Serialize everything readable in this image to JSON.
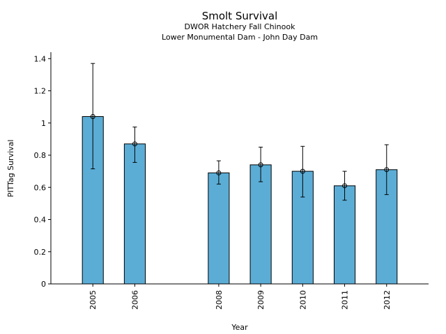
{
  "chart_data": {
    "type": "bar",
    "title": "Smolt Survival",
    "subtitle_lines": [
      "DWOR Hatchery Fall Chinook",
      "Lower Monumental Dam - John Day Dam"
    ],
    "xlabel": "Year",
    "ylabel": "PITTag Survival",
    "categories": [
      "2005",
      "2006",
      "2008",
      "2009",
      "2010",
      "2011",
      "2012"
    ],
    "x_positions": [
      2005,
      2006,
      2008,
      2009,
      2010,
      2011,
      2012
    ],
    "xlim": [
      2004.0,
      2013.0
    ],
    "values": [
      1.04,
      0.87,
      0.69,
      0.74,
      0.7,
      0.61,
      0.71
    ],
    "error_low": [
      0.715,
      0.755,
      0.62,
      0.635,
      0.54,
      0.52,
      0.555
    ],
    "error_high": [
      1.37,
      0.975,
      0.765,
      0.85,
      0.855,
      0.7,
      0.865
    ],
    "ylim": [
      0,
      1.44
    ],
    "yticks": [
      0,
      0.2,
      0.4,
      0.6,
      0.8,
      1.0,
      1.2,
      1.4
    ],
    "ytick_labels": [
      "0",
      "0.2",
      "0.4",
      "0.6",
      "0.8",
      "1",
      "1.2",
      "1.4"
    ],
    "bar_color": "#5BADD6",
    "grid": false,
    "legend": "none"
  }
}
